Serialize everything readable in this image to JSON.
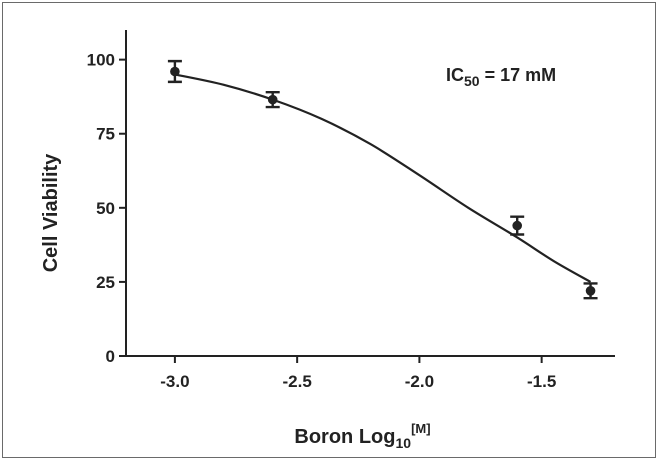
{
  "chart_data": {
    "type": "scatter",
    "title": "",
    "xlabel": "Boron Log",
    "xlabel_sub": "10",
    "xlabel_sup": "[M]",
    "ylabel": "Cell Viability",
    "xlim": [
      -3.2,
      -1.2
    ],
    "ylim": [
      0,
      110
    ],
    "xticks": [
      -3.0,
      -2.5,
      -2.0,
      -1.5
    ],
    "xtick_labels": [
      "-3.0",
      "-2.5",
      "-2.0",
      "-1.5"
    ],
    "yticks": [
      0,
      25,
      50,
      75,
      100
    ],
    "ytick_labels": [
      "0",
      "25",
      "50",
      "75",
      "100"
    ],
    "grid": false,
    "series": [
      {
        "x": [
          -3.0,
          -2.6,
          -1.6,
          -1.3
        ],
        "y": [
          96,
          86.5,
          44,
          22
        ],
        "err": [
          3.5,
          2.5,
          3,
          2.5
        ]
      }
    ],
    "fit": {
      "x": [
        -3.0,
        -2.8,
        -2.6,
        -2.4,
        -2.2,
        -2.0,
        -1.8,
        -1.6,
        -1.45,
        -1.3
      ],
      "y": [
        95,
        91.5,
        86.5,
        80,
        71.5,
        61,
        50,
        40,
        32,
        25
      ]
    },
    "annotation": {
      "main": "IC",
      "sub": "50",
      "rest": " = 17 mM"
    }
  }
}
